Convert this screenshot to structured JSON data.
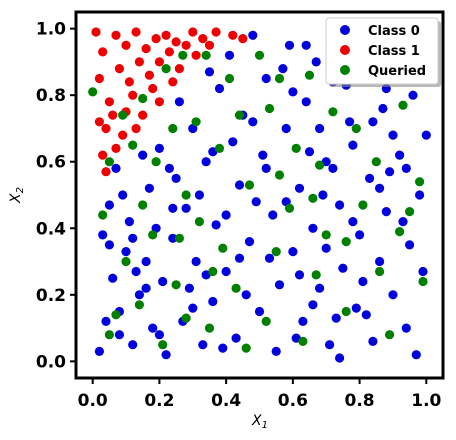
{
  "chart_data": {
    "type": "scatter",
    "title": "",
    "xlabel": "X",
    "xlabel_sub": "1",
    "ylabel": "X",
    "ylabel_sub": "2",
    "xlim": [
      -0.05,
      1.05
    ],
    "ylim": [
      -0.05,
      1.05
    ],
    "xticks": [
      0.0,
      0.2,
      0.4,
      0.6,
      0.8,
      1.0
    ],
    "yticks": [
      0.0,
      0.2,
      0.4,
      0.6,
      0.8,
      1.0
    ],
    "xtick_labels": [
      "0.0",
      "0.2",
      "0.4",
      "0.6",
      "0.8",
      "1.0"
    ],
    "ytick_labels": [
      "0.0",
      "0.2",
      "0.4",
      "0.6",
      "0.8",
      "1.0"
    ],
    "grid": false,
    "legend_position": "top-right",
    "series": [
      {
        "name": "Class 0",
        "color": "#0000dd",
        "points": [
          [
            0.02,
            0.03
          ],
          [
            0.04,
            0.12
          ],
          [
            0.06,
            0.25
          ],
          [
            0.03,
            0.38
          ],
          [
            0.05,
            0.47
          ],
          [
            0.08,
            0.15
          ],
          [
            0.1,
            0.33
          ],
          [
            0.07,
            0.58
          ],
          [
            0.12,
            0.05
          ],
          [
            0.14,
            0.2
          ],
          [
            0.11,
            0.42
          ],
          [
            0.16,
            0.3
          ],
          [
            0.18,
            0.1
          ],
          [
            0.17,
            0.52
          ],
          [
            0.2,
            0.64
          ],
          [
            0.22,
            0.02
          ],
          [
            0.21,
            0.24
          ],
          [
            0.24,
            0.37
          ],
          [
            0.25,
            0.55
          ],
          [
            0.27,
            0.12
          ],
          [
            0.28,
            0.46
          ],
          [
            0.3,
            0.7
          ],
          [
            0.31,
            0.3
          ],
          [
            0.33,
            0.05
          ],
          [
            0.34,
            0.6
          ],
          [
            0.36,
            0.18
          ],
          [
            0.37,
            0.41
          ],
          [
            0.38,
            0.82
          ],
          [
            0.4,
            0.27
          ],
          [
            0.41,
            0.92
          ],
          [
            0.43,
            0.07
          ],
          [
            0.44,
            0.53
          ],
          [
            0.45,
            0.74
          ],
          [
            0.47,
            0.36
          ],
          [
            0.48,
            0.98
          ],
          [
            0.5,
            0.15
          ],
          [
            0.51,
            0.62
          ],
          [
            0.52,
            0.85
          ],
          [
            0.54,
            0.44
          ],
          [
            0.55,
            0.03
          ],
          [
            0.56,
            0.23
          ],
          [
            0.58,
            0.7
          ],
          [
            0.59,
            0.95
          ],
          [
            0.6,
            0.33
          ],
          [
            0.62,
            0.52
          ],
          [
            0.63,
            0.12
          ],
          [
            0.64,
            0.78
          ],
          [
            0.66,
            0.4
          ],
          [
            0.67,
            0.9
          ],
          [
            0.68,
            0.22
          ],
          [
            0.7,
            0.6
          ],
          [
            0.71,
            0.05
          ],
          [
            0.72,
            0.84
          ],
          [
            0.74,
            0.47
          ],
          [
            0.75,
            0.28
          ],
          [
            0.76,
            0.97
          ],
          [
            0.78,
            0.65
          ],
          [
            0.79,
            0.16
          ],
          [
            0.8,
            0.38
          ],
          [
            0.82,
            0.88
          ],
          [
            0.83,
            0.55
          ],
          [
            0.84,
            0.06
          ],
          [
            0.86,
            0.3
          ],
          [
            0.87,
            0.76
          ],
          [
            0.88,
            0.45
          ],
          [
            0.9,
            0.2
          ],
          [
            0.91,
            0.93
          ],
          [
            0.92,
            0.62
          ],
          [
            0.94,
            0.1
          ],
          [
            0.95,
            0.35
          ],
          [
            0.96,
            0.8
          ],
          [
            0.98,
            0.5
          ],
          [
            0.99,
            0.27
          ],
          [
            1.0,
            0.68
          ],
          [
            0.97,
            0.02
          ],
          [
            0.93,
            0.42
          ],
          [
            0.89,
            0.57
          ],
          [
            0.85,
            0.98
          ],
          [
            0.81,
            0.24
          ],
          [
            0.77,
            0.72
          ],
          [
            0.73,
            0.13
          ],
          [
            0.69,
            0.5
          ],
          [
            0.65,
            0.63
          ],
          [
            0.61,
            0.07
          ],
          [
            0.57,
            0.88
          ],
          [
            0.53,
            0.31
          ],
          [
            0.49,
            0.48
          ],
          [
            0.46,
            0.2
          ],
          [
            0.42,
            0.66
          ],
          [
            0.39,
            0.04
          ],
          [
            0.35,
            0.87
          ],
          [
            0.32,
            0.5
          ],
          [
            0.29,
            0.22
          ],
          [
            0.26,
            0.78
          ],
          [
            0.23,
            0.58
          ],
          [
            0.19,
            0.4
          ],
          [
            0.15,
            0.62
          ],
          [
            0.13,
            0.27
          ],
          [
            0.09,
            0.5
          ],
          [
            0.05,
            0.35
          ],
          [
            0.58,
            0.48
          ],
          [
            0.62,
            0.26
          ],
          [
            0.66,
            0.17
          ],
          [
            0.7,
            0.34
          ],
          [
            0.74,
            0.01
          ],
          [
            0.78,
            0.42
          ],
          [
            0.82,
            0.14
          ],
          [
            0.86,
            0.52
          ],
          [
            0.9,
            0.68
          ],
          [
            0.94,
            0.58
          ],
          [
            0.44,
            0.31
          ],
          [
            0.48,
            0.72
          ],
          [
            0.52,
            0.58
          ],
          [
            0.36,
            0.63
          ],
          [
            0.4,
            0.44
          ],
          [
            0.3,
            0.16
          ],
          [
            0.34,
            0.26
          ],
          [
            0.2,
            0.08
          ],
          [
            0.24,
            0.46
          ],
          [
            0.16,
            0.22
          ],
          [
            0.12,
            0.37
          ],
          [
            0.08,
            0.08
          ],
          [
            0.6,
            0.81
          ],
          [
            0.64,
            0.95
          ],
          [
            0.68,
            0.7
          ],
          [
            0.72,
            0.58
          ],
          [
            0.76,
            0.83
          ],
          [
            0.8,
            0.94
          ],
          [
            0.84,
            0.72
          ],
          [
            0.88,
            0.82
          ]
        ]
      },
      {
        "name": "Class 1",
        "color": "#ee0000",
        "points": [
          [
            0.01,
            0.99
          ],
          [
            0.03,
            0.93
          ],
          [
            0.02,
            0.85
          ],
          [
            0.05,
            0.78
          ],
          [
            0.04,
            0.7
          ],
          [
            0.03,
            0.62
          ],
          [
            0.07,
            0.98
          ],
          [
            0.08,
            0.88
          ],
          [
            0.06,
            0.74
          ],
          [
            0.1,
            0.95
          ],
          [
            0.11,
            0.84
          ],
          [
            0.09,
            0.68
          ],
          [
            0.13,
            0.99
          ],
          [
            0.14,
            0.9
          ],
          [
            0.12,
            0.8
          ],
          [
            0.16,
            0.94
          ],
          [
            0.17,
            0.86
          ],
          [
            0.15,
            0.74
          ],
          [
            0.19,
            0.97
          ],
          [
            0.2,
            0.9
          ],
          [
            0.18,
            0.82
          ],
          [
            0.22,
            0.98
          ],
          [
            0.23,
            0.93
          ],
          [
            0.25,
            0.96
          ],
          [
            0.26,
            0.88
          ],
          [
            0.28,
            0.95
          ],
          [
            0.3,
            0.99
          ],
          [
            0.31,
            0.92
          ],
          [
            0.33,
            0.97
          ],
          [
            0.35,
            0.95
          ],
          [
            0.37,
            0.99
          ],
          [
            0.42,
            0.98
          ],
          [
            0.45,
            0.97
          ],
          [
            0.24,
            0.84
          ],
          [
            0.2,
            0.78
          ],
          [
            0.1,
            0.75
          ],
          [
            0.07,
            0.64
          ],
          [
            0.04,
            0.57
          ],
          [
            0.02,
            0.72
          ],
          [
            0.13,
            0.7
          ]
        ]
      },
      {
        "name": "Queried",
        "color": "#008000",
        "points": [
          [
            0.0,
            0.81
          ],
          [
            0.05,
            0.6
          ],
          [
            0.09,
            0.74
          ],
          [
            0.12,
            0.65
          ],
          [
            0.15,
            0.79
          ],
          [
            0.19,
            0.6
          ],
          [
            0.22,
            0.88
          ],
          [
            0.24,
            0.7
          ],
          [
            0.27,
            0.92
          ],
          [
            0.28,
            0.5
          ],
          [
            0.31,
            0.72
          ],
          [
            0.34,
            0.92
          ],
          [
            0.38,
            0.64
          ],
          [
            0.41,
            0.85
          ],
          [
            0.44,
            0.74
          ],
          [
            0.5,
            0.92
          ],
          [
            0.53,
            0.76
          ],
          [
            0.56,
            0.85
          ],
          [
            0.61,
            0.64
          ],
          [
            0.65,
            0.86
          ],
          [
            0.68,
            0.59
          ],
          [
            0.72,
            0.75
          ],
          [
            0.79,
            0.7
          ],
          [
            0.85,
            0.6
          ],
          [
            0.93,
            0.77
          ],
          [
            0.98,
            0.54
          ],
          [
            0.92,
            0.39
          ],
          [
            0.86,
            0.27
          ],
          [
            0.81,
            0.47
          ],
          [
            0.76,
            0.15
          ],
          [
            0.7,
            0.38
          ],
          [
            0.67,
            0.26
          ],
          [
            0.63,
            0.06
          ],
          [
            0.59,
            0.46
          ],
          [
            0.55,
            0.33
          ],
          [
            0.52,
            0.12
          ],
          [
            0.47,
            0.53
          ],
          [
            0.43,
            0.22
          ],
          [
            0.39,
            0.34
          ],
          [
            0.35,
            0.1
          ],
          [
            0.32,
            0.42
          ],
          [
            0.28,
            0.13
          ],
          [
            0.25,
            0.23
          ],
          [
            0.21,
            0.05
          ],
          [
            0.18,
            0.38
          ],
          [
            0.14,
            0.17
          ],
          [
            0.1,
            0.3
          ],
          [
            0.07,
            0.14
          ],
          [
            0.03,
            0.44
          ],
          [
            0.05,
            0.08
          ],
          [
            0.15,
            0.47
          ],
          [
            0.26,
            0.37
          ],
          [
            0.36,
            0.27
          ],
          [
            0.46,
            0.04
          ],
          [
            0.56,
            0.56
          ],
          [
            0.66,
            0.49
          ],
          [
            0.76,
            0.36
          ],
          [
            0.89,
            0.08
          ],
          [
            0.95,
            0.45
          ],
          [
            0.99,
            0.24
          ]
        ]
      }
    ]
  }
}
